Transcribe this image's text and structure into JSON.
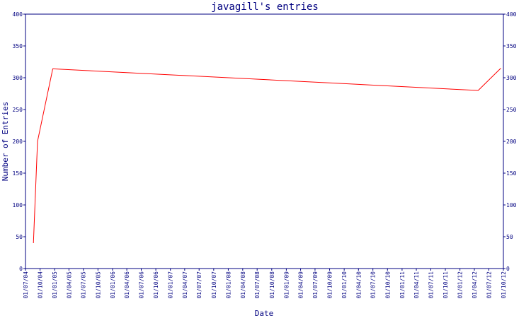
{
  "chart_data": {
    "type": "line",
    "title": "javagill's entries",
    "xlabel": "Date",
    "ylabel": "Number of Entries",
    "ylim": [
      0,
      400
    ],
    "yticks": [
      0,
      50,
      100,
      150,
      200,
      250,
      300,
      350,
      400
    ],
    "right_axis_ticks": true,
    "grid": false,
    "x_tick_labels": [
      "01/07/04",
      "01/10/04",
      "01/01/05",
      "01/04/05",
      "01/07/05",
      "01/10/05",
      "01/01/06",
      "01/04/06",
      "01/07/06",
      "01/10/06",
      "01/01/07",
      "01/04/07",
      "01/07/07",
      "01/10/07",
      "01/01/08",
      "01/04/08",
      "01/07/08",
      "01/10/08",
      "01/01/09",
      "01/04/09",
      "01/07/09",
      "01/10/09",
      "01/01/10",
      "01/04/10",
      "01/07/10",
      "01/10/10",
      "01/01/11",
      "01/04/11",
      "01/07/11",
      "01/10/11",
      "01/01/12",
      "01/04/12",
      "01/07/12",
      "01/10/12"
    ],
    "series": [
      {
        "color": "#ff0000",
        "points": [
          {
            "x": "2004-08-20",
            "y": 40
          },
          {
            "x": "2004-09-15",
            "y": 200
          },
          {
            "x": "2004-12-20",
            "y": 314
          },
          {
            "x": "2012-04-25",
            "y": 280
          },
          {
            "x": "2012-09-15",
            "y": 315
          }
        ]
      }
    ]
  },
  "colors": {
    "axis": "#000080",
    "line": "#ff0000",
    "background": "#ffffff"
  }
}
